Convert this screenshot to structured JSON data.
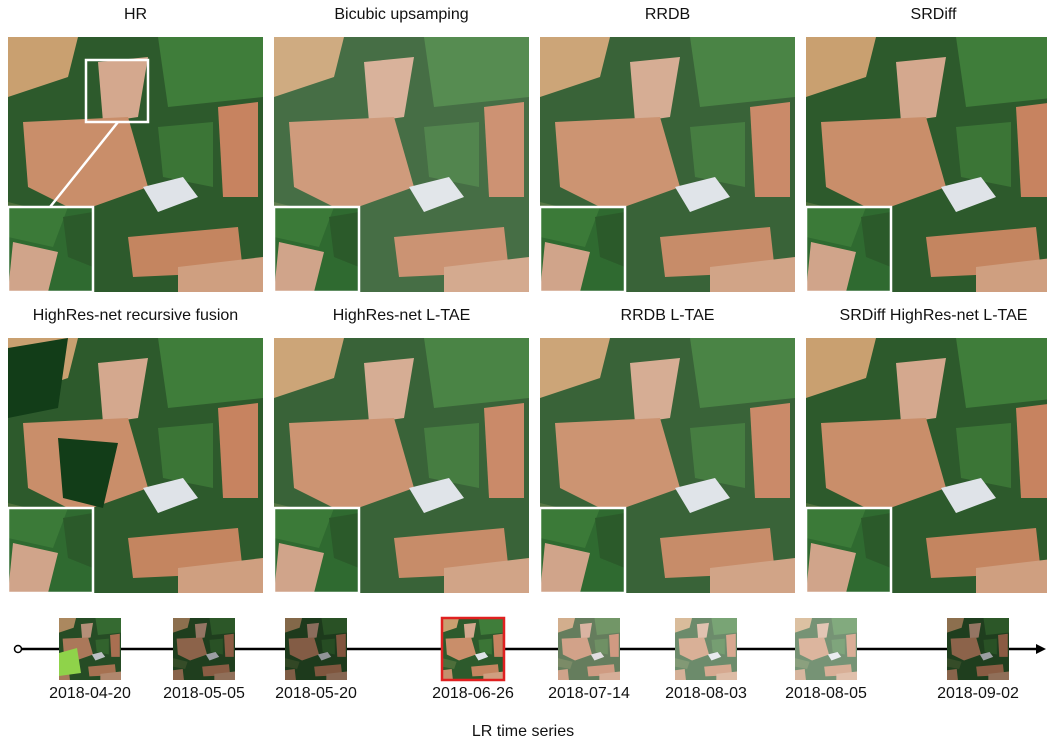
{
  "panels": [
    {
      "title": "HR"
    },
    {
      "title": "Bicubic upsamping"
    },
    {
      "title": "RRDB"
    },
    {
      "title": "SRDiff"
    },
    {
      "title": "HighRes-net recursive fusion"
    },
    {
      "title": "HighRes-net L-TAE"
    },
    {
      "title": "RRDB L-TAE"
    },
    {
      "title": "SRDiff HighRes-net L-TAE"
    }
  ],
  "timeline": {
    "dates": [
      "2018-04-20",
      "2018-05-05",
      "2018-05-20",
      "2018-06-26",
      "2018-07-14",
      "2018-08-03",
      "2018-08-05",
      "2018-09-02"
    ],
    "caption": "LR time series"
  }
}
